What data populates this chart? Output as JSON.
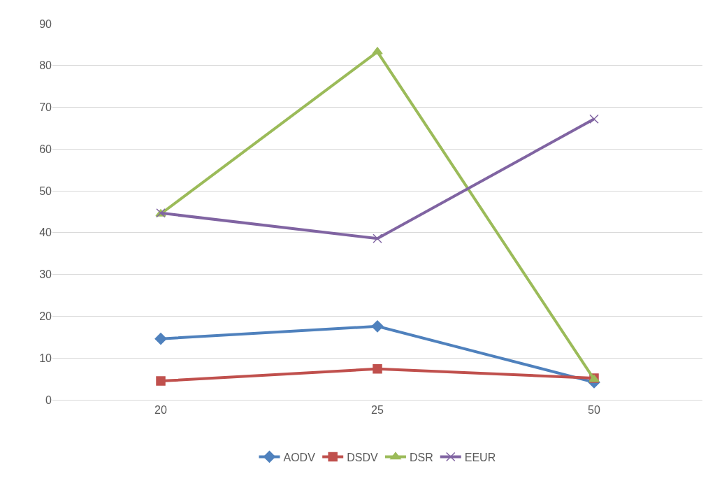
{
  "chart_data": {
    "type": "line",
    "categories": [
      "20",
      "25",
      "50"
    ],
    "series": [
      {
        "name": "AODV",
        "color": "#4f81bd",
        "marker": "diamond",
        "values": [
          14.6,
          17.6,
          4.2
        ]
      },
      {
        "name": "DSDV",
        "color": "#c0504d",
        "marker": "square",
        "values": [
          4.5,
          7.4,
          5.2
        ]
      },
      {
        "name": "DSR",
        "color": "#9bbb59",
        "marker": "triangle",
        "values": [
          44.5,
          83.3,
          4.9
        ]
      },
      {
        "name": "EEUR",
        "color": "#8064a2",
        "marker": "cross",
        "values": [
          44.7,
          38.6,
          67.2
        ]
      }
    ],
    "ylim": [
      0,
      90
    ],
    "yticks": [
      0,
      10,
      20,
      30,
      40,
      50,
      60,
      70,
      80,
      90
    ],
    "grid": "y",
    "legend": "bottom",
    "line_style": "solid"
  }
}
